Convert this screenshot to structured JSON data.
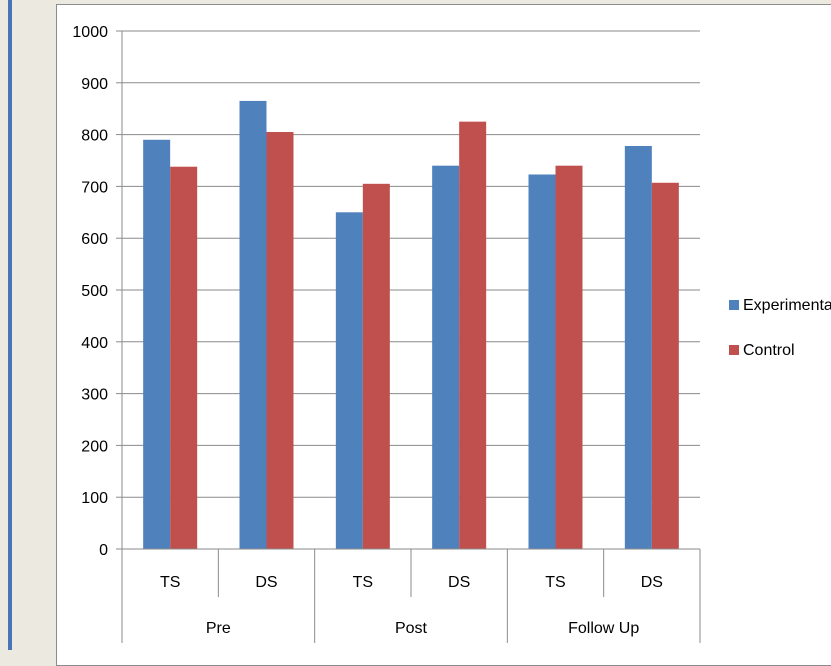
{
  "chart_data": {
    "type": "bar",
    "title": "",
    "xlabel": "",
    "ylabel": "",
    "ylim": [
      0,
      1000
    ],
    "ytick_step": 100,
    "yticks": [
      "0",
      "100",
      "200",
      "300",
      "400",
      "500",
      "600",
      "700",
      "800",
      "900",
      "1000"
    ],
    "grid": true,
    "legend_position": "right",
    "categories": [
      "TS",
      "DS",
      "TS",
      "DS",
      "TS",
      "DS"
    ],
    "groups": [
      {
        "label": "Pre",
        "span": 2
      },
      {
        "label": "Post",
        "span": 2
      },
      {
        "label": "Follow Up",
        "span": 2
      }
    ],
    "series": [
      {
        "name": "Experimental",
        "color": "#4f81bd",
        "values": [
          790,
          865,
          650,
          740,
          723,
          778
        ]
      },
      {
        "name": "Control",
        "color": "#c0504d",
        "values": [
          738,
          805,
          705,
          825,
          740,
          707
        ]
      }
    ]
  }
}
